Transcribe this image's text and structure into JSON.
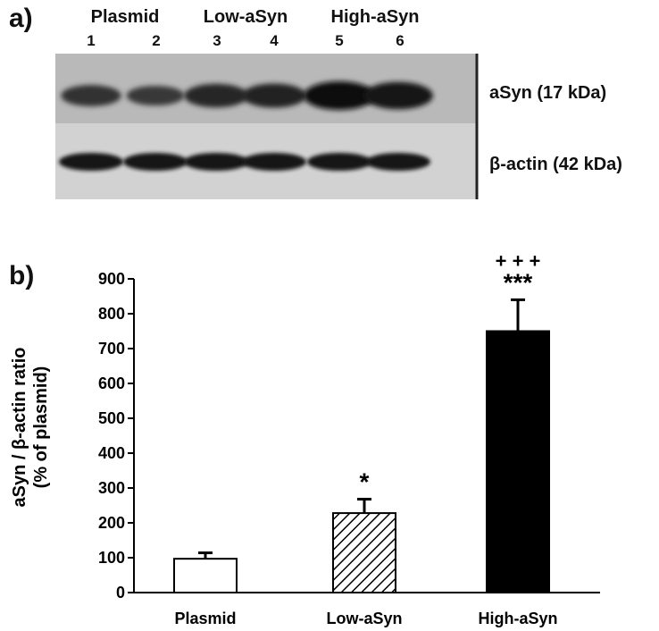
{
  "panel_a": {
    "label": "a)",
    "groups": [
      "Plasmid",
      "Low-aSyn",
      "High-aSyn"
    ],
    "lanes": [
      "1",
      "2",
      "3",
      "4",
      "5",
      "6"
    ],
    "band_rows": [
      {
        "label": "aSyn (17 kDa)",
        "intensities": [
          0.55,
          0.45,
          0.7,
          0.72,
          1.0,
          0.92
        ]
      },
      {
        "label": "β-actin (42 kDa)",
        "intensities": [
          0.9,
          0.9,
          0.9,
          0.88,
          0.9,
          0.9
        ]
      }
    ]
  },
  "panel_b": {
    "label": "b)"
  },
  "chart_data": {
    "type": "bar",
    "title": "",
    "xlabel": "",
    "ylabel_line1": "aSyn / β-actin ratio",
    "ylabel_line2": "(% of plasmid)",
    "ylim": [
      0,
      900
    ],
    "yticks": [
      "0",
      "100",
      "200",
      "300",
      "400",
      "500",
      "600",
      "700",
      "800",
      "900"
    ],
    "categories": [
      "Plasmid",
      "Low-aSyn",
      "High-aSyn"
    ],
    "values": [
      97,
      228,
      750
    ],
    "errors": [
      17,
      40,
      90
    ],
    "fills": [
      "white",
      "hatched",
      "black"
    ],
    "significance": [
      {
        "category": "Low-aSyn",
        "lines": [
          "*"
        ]
      },
      {
        "category": "High-aSyn",
        "lines": [
          "+ + +",
          "***"
        ]
      }
    ],
    "colors": {
      "bar_stroke": "#000000",
      "solid": "#000000",
      "background": "#ffffff"
    }
  }
}
